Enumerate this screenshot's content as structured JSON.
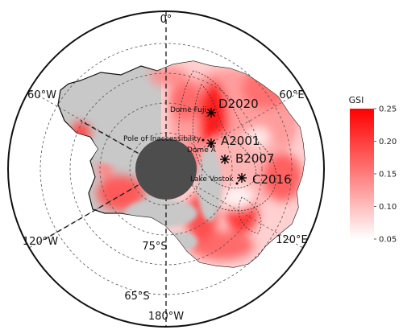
{
  "map": {
    "longitude_labels": {
      "lon_0": "0°",
      "lon_60w": "60°W",
      "lon_60e": "60°E",
      "lon_120w": "120°W",
      "lon_120e": "120°E",
      "lon_180w": "180°W"
    },
    "latitude_labels": {
      "lat_75s": "75°S",
      "lat_65s": "65°S"
    },
    "sites": [
      {
        "id": "dome-fuji",
        "label": "Dome Fuji",
        "size": "small"
      },
      {
        "id": "d2020",
        "label": "D2020",
        "size": "large"
      },
      {
        "id": "pole-of-inaccessibility",
        "label": "Pole of Inaccessibility",
        "size": "small"
      },
      {
        "id": "dome-a",
        "label": "Dome A",
        "size": "small"
      },
      {
        "id": "a2001",
        "label": "A2001",
        "size": "large"
      },
      {
        "id": "b2007",
        "label": "B2007",
        "size": "large"
      },
      {
        "id": "lake-vostok",
        "label": "Lake Vostok",
        "size": "small"
      },
      {
        "id": "c2016",
        "label": "C2016",
        "size": "large"
      }
    ],
    "colors": {
      "land_gray": "#c8c8c8",
      "pole_hole": "#4d4d4d",
      "gsi_high": "#ff0000",
      "gsi_low": "#ffffff"
    }
  },
  "colorbar": {
    "title": "GSI",
    "min": 0.05,
    "max": 0.25,
    "ticks": [
      "0.25",
      "0.20",
      "0.15",
      "0.10",
      "0.05"
    ]
  }
}
